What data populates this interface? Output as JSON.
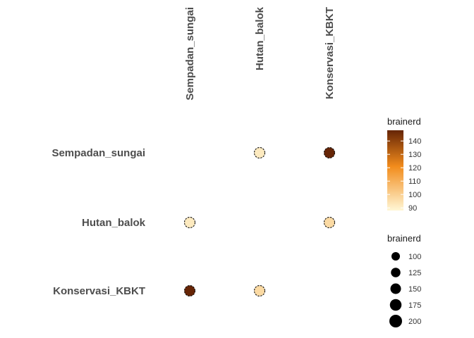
{
  "chart_data": {
    "type": "scatter",
    "variables": [
      "Sempadan_sungai",
      "Hutan_balok",
      "Konservasi_KBKT"
    ],
    "points": [
      {
        "row": "Sempadan_sungai",
        "col": "Hutan_balok",
        "value": 92,
        "size": 150
      },
      {
        "row": "Sempadan_sungai",
        "col": "Konservasi_KBKT",
        "value": 148,
        "size": 150
      },
      {
        "row": "Hutan_balok",
        "col": "Sempadan_sungai",
        "value": 92,
        "size": 150
      },
      {
        "row": "Hutan_balok",
        "col": "Konservasi_KBKT",
        "value": 97,
        "size": 150
      },
      {
        "row": "Konservasi_KBKT",
        "col": "Sempadan_sungai",
        "value": 148,
        "size": 150
      },
      {
        "row": "Konservasi_KBKT",
        "col": "Hutan_balok",
        "value": 97,
        "size": 150
      }
    ],
    "color_legend": {
      "title": "brainerd",
      "ticks": [
        90,
        100,
        110,
        120,
        130,
        140
      ],
      "range": [
        88,
        148
      ],
      "low_color": "#FFF7D6",
      "mid_color": "#F28C1C",
      "high_color": "#662506"
    },
    "size_legend": {
      "title": "brainerd",
      "values": [
        100,
        125,
        150,
        175,
        200
      ]
    },
    "grid": false
  }
}
